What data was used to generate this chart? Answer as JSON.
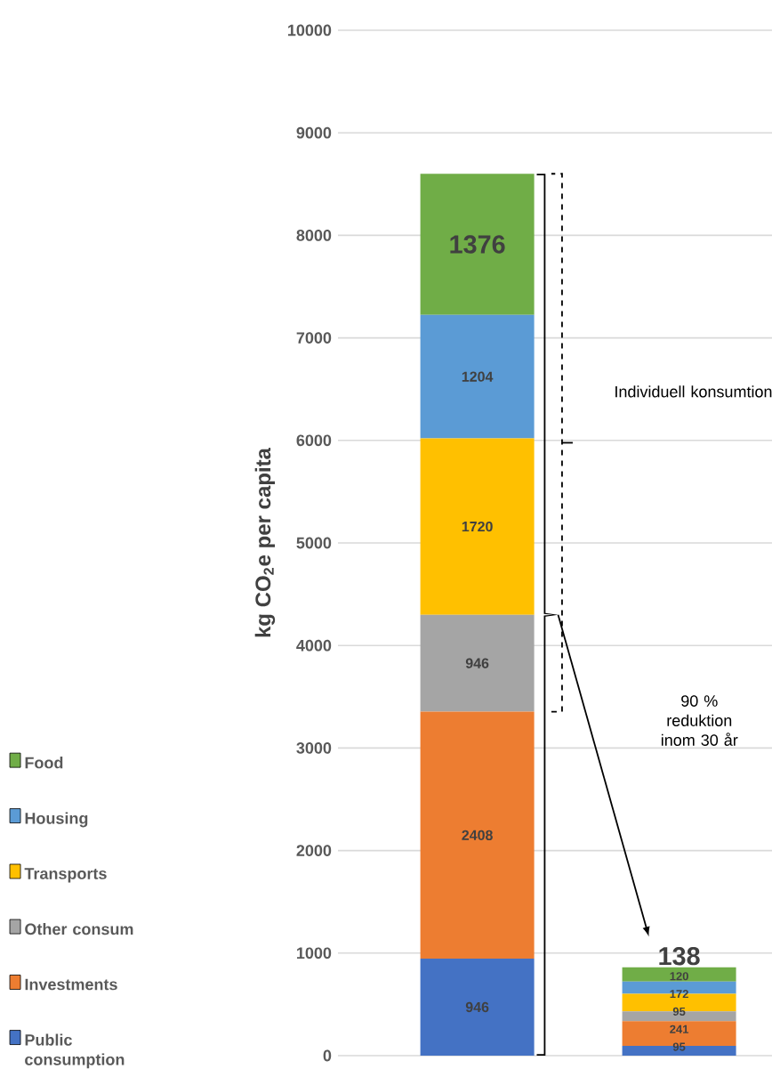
{
  "chart_data": {
    "type": "bar",
    "stacked": true,
    "ylabel": "kg CO$_{2}$e per capita",
    "categories": [
      null,
      null
    ],
    "series": [
      {
        "name": "Public consumption",
        "color": "#4472c4",
        "values": [
          946,
          95
        ]
      },
      {
        "name": "Investments",
        "color": "#ed7d31",
        "values": [
          2408,
          241
        ]
      },
      {
        "name": "Other consum",
        "color": "#a5a5a5",
        "values": [
          946,
          95
        ]
      },
      {
        "name": "Transports",
        "color": "#ffc000",
        "values": [
          1720,
          172
        ]
      },
      {
        "name": "Housing",
        "color": "#5b9bd5",
        "values": [
          1204,
          120
        ]
      },
      {
        "name": "Food",
        "color": "#70ad47",
        "values": [
          1376,
          138
        ]
      }
    ],
    "ylim": [
      0,
      10000
    ],
    "yticks": [
      0,
      1000,
      2000,
      3000,
      4000,
      5000,
      6000,
      7000,
      8000,
      9000,
      10000
    ],
    "grid": "y",
    "legend": "left",
    "data_labels": true,
    "annotations": [
      "Individuell konsumtion",
      "90 % reduktion inom 30 år"
    ]
  }
}
